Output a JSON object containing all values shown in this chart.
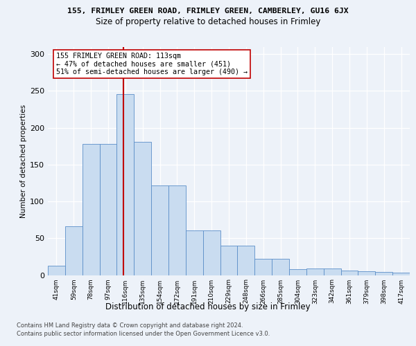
{
  "title": "155, FRIMLEY GREEN ROAD, FRIMLEY GREEN, CAMBERLEY, GU16 6JX",
  "subtitle": "Size of property relative to detached houses in Frimley",
  "xlabel": "Distribution of detached houses by size in Frimley",
  "ylabel": "Number of detached properties",
  "bar_labels": [
    "41sqm",
    "59sqm",
    "78sqm",
    "97sqm",
    "116sqm",
    "135sqm",
    "154sqm",
    "172sqm",
    "191sqm",
    "210sqm",
    "229sqm",
    "248sqm",
    "266sqm",
    "285sqm",
    "304sqm",
    "323sqm",
    "342sqm",
    "361sqm",
    "379sqm",
    "398sqm",
    "417sqm"
  ],
  "bar_values": [
    13,
    66,
    178,
    178,
    246,
    181,
    122,
    122,
    61,
    61,
    40,
    40,
    22,
    22,
    8,
    9,
    9,
    6,
    5,
    4,
    3
  ],
  "bar_color": "#c9dcf0",
  "bar_edge_color": "#5b8ec8",
  "vline_color": "#c00000",
  "vline_x": 3.87,
  "annotation_text": "155 FRIMLEY GREEN ROAD: 113sqm\n← 47% of detached houses are smaller (451)\n51% of semi-detached houses are larger (490) →",
  "ylim": [
    0,
    310
  ],
  "yticks": [
    0,
    50,
    100,
    150,
    200,
    250,
    300
  ],
  "footer_line1": "Contains HM Land Registry data © Crown copyright and database right 2024.",
  "footer_line2": "Contains public sector information licensed under the Open Government Licence v3.0.",
  "bg_color": "#edf2f9"
}
